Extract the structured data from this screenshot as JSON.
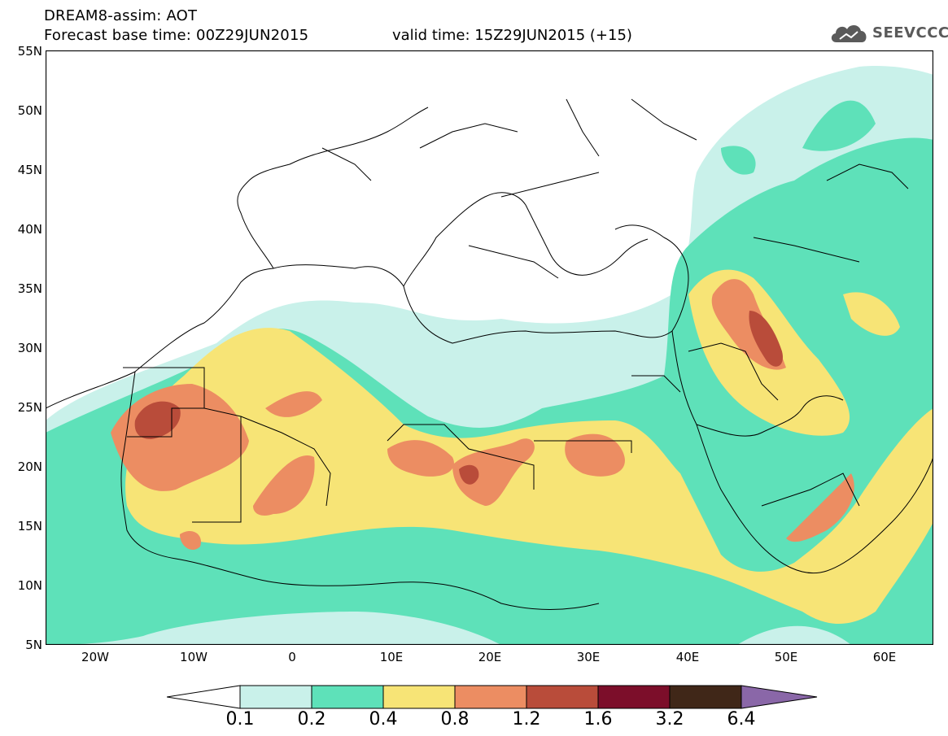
{
  "header": {
    "title": "DREAM8-assim: AOT",
    "base_time_text": "Forecast base time: 00Z29JUN2015",
    "valid_time_text": "valid time: 15Z29JUN2015 (+15)"
  },
  "logo": {
    "text": "SEEVCCC",
    "icon": "cloud-icon"
  },
  "axes": {
    "lat_labels": [
      "55N",
      "50N",
      "45N",
      "40N",
      "35N",
      "30N",
      "25N",
      "20N",
      "15N",
      "10N",
      "5N"
    ],
    "lon_labels": [
      "20W",
      "10W",
      "0",
      "10E",
      "20E",
      "30E",
      "40E",
      "50E",
      "60E"
    ]
  },
  "colorbar": {
    "labels": [
      "0.1",
      "0.2",
      "0.4",
      "0.8",
      "1.2",
      "1.6",
      "3.2",
      "6.4"
    ],
    "colors": [
      "#ffffff",
      "#c9f1ea",
      "#5ee1b9",
      "#f7e476",
      "#ec8d62",
      "#b94c3a",
      "#7c0e2a",
      "#402718",
      "#8a67a8"
    ]
  },
  "legend_colors": {
    "c1": "#c9f1ea",
    "c2": "#5ee1b9",
    "c3": "#f7e476",
    "c4": "#ec8d62",
    "c5": "#b94c3a",
    "c6": "#7c0e2a"
  }
}
